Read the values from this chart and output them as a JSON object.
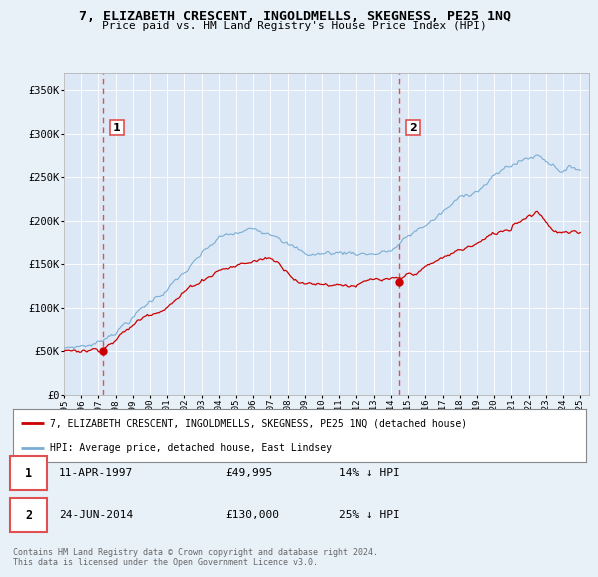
{
  "title": "7, ELIZABETH CRESCENT, INGOLDMELLS, SKEGNESS, PE25 1NQ",
  "subtitle": "Price paid vs. HM Land Registry's House Price Index (HPI)",
  "background_color": "#e8f0f8",
  "plot_bg_color": "#dce8f5",
  "ylim": [
    0,
    370000
  ],
  "yticks": [
    0,
    50000,
    100000,
    150000,
    200000,
    250000,
    300000,
    350000
  ],
  "ytick_labels": [
    "£0",
    "£50K",
    "£100K",
    "£150K",
    "£200K",
    "£250K",
    "£300K",
    "£350K"
  ],
  "transaction1": {
    "date_x": 1997.28,
    "price": 49995,
    "label": "1",
    "date_str": "11-APR-1997",
    "pct": "14% ↓ HPI"
  },
  "transaction2": {
    "date_x": 2014.48,
    "price": 130000,
    "label": "2",
    "date_str": "24-JUN-2014",
    "pct": "25% ↓ HPI"
  },
  "legend_label_red": "7, ELIZABETH CRESCENT, INGOLDMELLS, SKEGNESS, PE25 1NQ (detached house)",
  "legend_label_blue": "HPI: Average price, detached house, East Lindsey",
  "footer": "Contains HM Land Registry data © Crown copyright and database right 2024.\nThis data is licensed under the Open Government Licence v3.0.",
  "red_color": "#cc0000",
  "blue_color": "#7aadd4",
  "vline_color": "#e05050",
  "xmin": 1995.0,
  "xmax": 2025.5
}
